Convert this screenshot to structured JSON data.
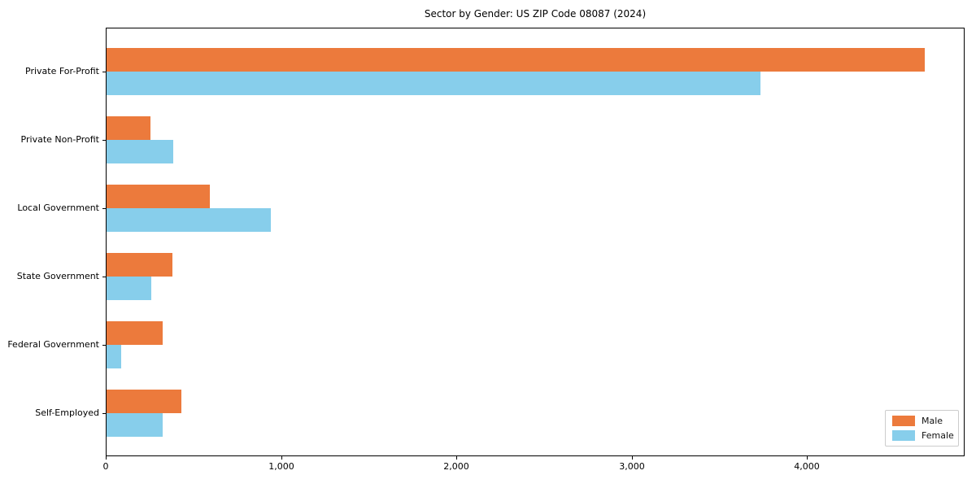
{
  "title": "Sector by Gender: US ZIP Code 08087 (2024)",
  "chart_data": {
    "type": "bar",
    "orientation": "horizontal",
    "title": "Sector by Gender: US ZIP Code 08087 (2024)",
    "categories": [
      "Private For-Profit",
      "Private Non-Profit",
      "Local Government",
      "State Government",
      "Federal Government",
      "Self-Employed"
    ],
    "series": [
      {
        "name": "Male",
        "color": "#ec7a3c",
        "values": [
          4670,
          250,
          590,
          375,
          320,
          425
        ]
      },
      {
        "name": "Female",
        "color": "#87ceeb",
        "values": [
          3730,
          380,
          935,
          255,
          85,
          320
        ]
      }
    ],
    "xlim": [
      0,
      4900
    ],
    "xticks": [
      0,
      1000,
      2000,
      3000,
      4000
    ],
    "xtick_labels": [
      "0",
      "1,000",
      "2,000",
      "3,000",
      "4,000"
    ],
    "xlabel": "",
    "ylabel": "",
    "grid": false,
    "legend_position": "lower right"
  }
}
